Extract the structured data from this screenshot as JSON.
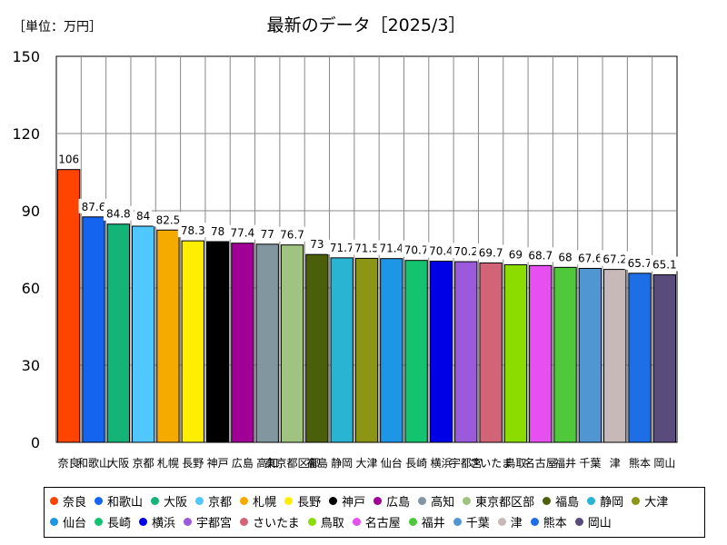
{
  "chart_data": {
    "type": "bar",
    "title": "最新のデータ［2025/3］",
    "unit_label": "［単位：万円］",
    "xlabel": "",
    "ylabel": "",
    "ylim": [
      0,
      150
    ],
    "yticks": [
      0,
      30,
      60,
      90,
      120,
      150
    ],
    "grid": true,
    "legend_position": "bottom",
    "categories": [
      "奈良",
      "和歌山",
      "大阪",
      "京都",
      "札幌",
      "長野",
      "神戸",
      "広島",
      "高知",
      "東京都区部",
      "福島",
      "静岡",
      "大津",
      "仙台",
      "長崎",
      "横浜",
      "宇都宮",
      "さいたま",
      "鳥取",
      "名古屋",
      "福井",
      "千葉",
      "津",
      "熊本",
      "岡山"
    ],
    "values": [
      106,
      87.6,
      84.8,
      84,
      82.5,
      78.3,
      78,
      77.4,
      77,
      76.7,
      73,
      71.7,
      71.5,
      71.4,
      70.7,
      70.4,
      70.2,
      69.7,
      69,
      68.7,
      68,
      67.6,
      67.2,
      65.7,
      65.1
    ],
    "value_labels": [
      "106",
      "87.6",
      "84.8",
      "84",
      "82.5",
      "78.3",
      "78",
      "77.4",
      "77",
      "76.7",
      "73",
      "71.7",
      "71.5",
      "71.4",
      "70.7",
      "70.4",
      "70.2",
      "69.7",
      "69",
      "68.7",
      "68",
      "67.6",
      "67.2",
      "65.7",
      "65.1"
    ],
    "x_tick_labels": [
      "奈良",
      "和歌山",
      "大阪",
      "京都",
      "札幌",
      "長野",
      "神戸",
      "広島",
      "高知",
      "東京都区部",
      "福島",
      "静岡",
      "大津",
      "仙台",
      "長崎",
      "横浜",
      "宇都宮",
      "さいたま",
      "鳥取",
      "名古屋",
      "福井",
      "千葉",
      "津",
      "熊本",
      "岡山"
    ],
    "colors": [
      "#ff4400",
      "#1464f0",
      "#14b478",
      "#50c8ff",
      "#f5aa00",
      "#ffee00",
      "#000000",
      "#a00096",
      "#8296a0",
      "#a0c382",
      "#4b5f0a",
      "#28b4d2",
      "#8c9614",
      "#1e96e6",
      "#14c36e",
      "#0000e6",
      "#9b5adc",
      "#d26478",
      "#8cdc00",
      "#e650f0",
      "#50c83c",
      "#5096d2",
      "#c8b9b9",
      "#1e6ee6",
      "#5a4b7d"
    ]
  }
}
